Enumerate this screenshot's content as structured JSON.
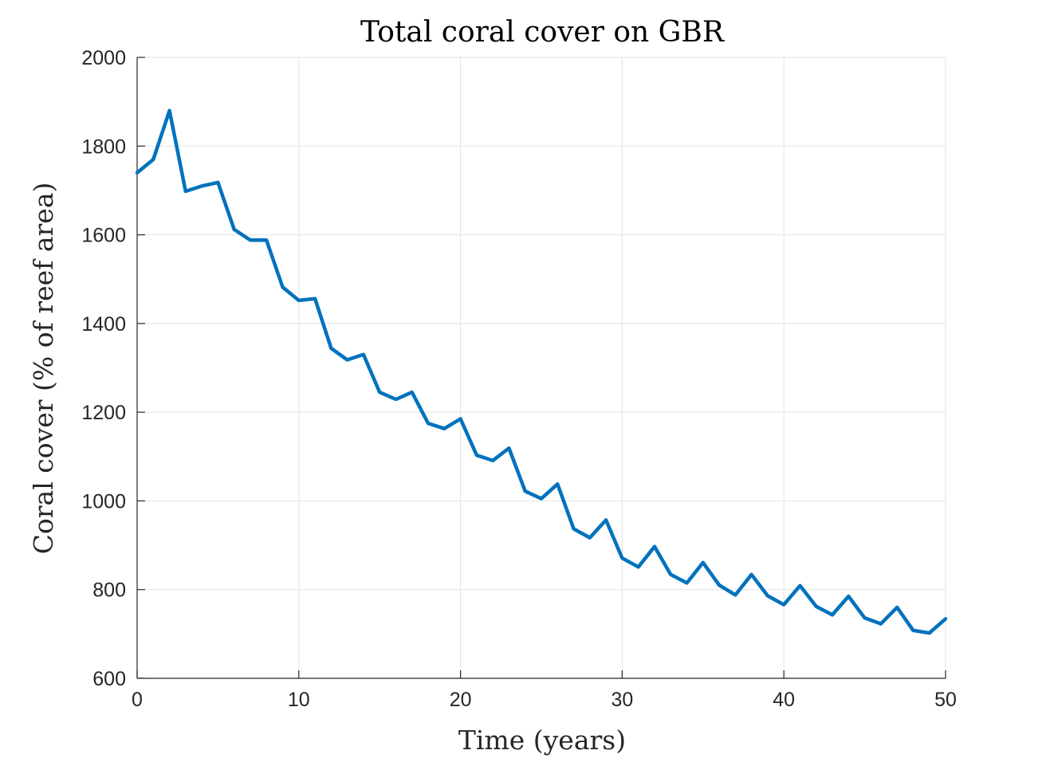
{
  "chart_data": {
    "type": "line",
    "title": "Total coral cover on GBR",
    "xlabel": "Time (years)",
    "ylabel": "Coral cover (% of reef area)",
    "xlim": [
      0,
      50
    ],
    "ylim": [
      600,
      2000
    ],
    "xticks": [
      0,
      10,
      20,
      30,
      40,
      50
    ],
    "yticks": [
      600,
      800,
      1000,
      1200,
      1400,
      1600,
      1800,
      2000
    ],
    "grid": true,
    "colors": {
      "series": "#0072bd"
    },
    "series": [
      {
        "x": [
          0,
          1,
          2,
          3,
          4,
          5,
          6,
          7,
          8,
          9,
          10,
          11,
          12,
          13,
          14,
          15,
          16,
          17,
          18,
          19,
          20,
          21,
          22,
          23,
          24,
          25,
          26,
          27,
          28,
          29,
          30,
          31,
          32,
          33,
          34,
          35,
          36,
          37,
          38,
          39,
          40,
          41,
          42,
          43,
          44,
          45,
          46,
          47,
          48,
          49,
          50
        ],
        "values": [
          1740,
          1770,
          1880,
          1698,
          1710,
          1718,
          1612,
          1588,
          1588,
          1482,
          1452,
          1456,
          1344,
          1318,
          1330,
          1245,
          1229,
          1245,
          1175,
          1163,
          1185,
          1103,
          1091,
          1119,
          1022,
          1005,
          1038,
          937,
          917,
          957,
          871,
          851,
          897,
          834,
          815,
          861,
          810,
          788,
          834,
          786,
          766,
          809,
          762,
          743,
          785,
          736,
          723,
          760,
          708,
          702,
          734
        ]
      }
    ]
  }
}
